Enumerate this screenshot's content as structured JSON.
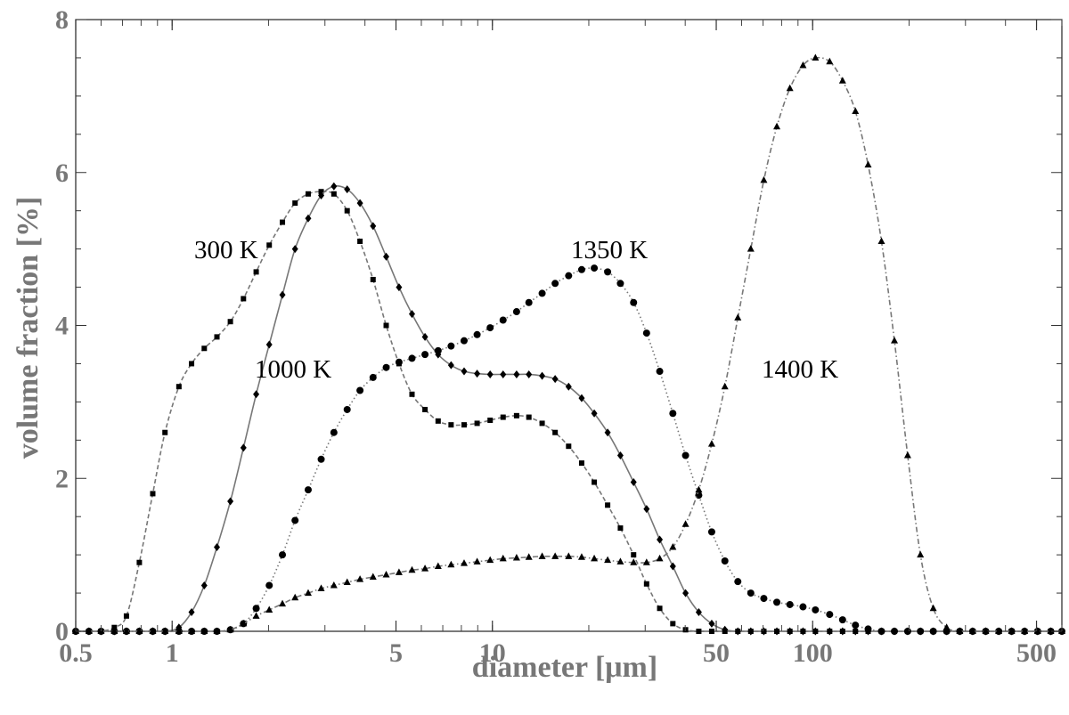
{
  "chart_data": {
    "type": "line",
    "xlabel": "diameter [μm]",
    "ylabel": "volume fraction [%]",
    "xscale": "log",
    "xlim": [
      0.5,
      600
    ],
    "ylim": [
      0,
      8
    ],
    "x_ticks": [
      {
        "value": 0.5,
        "label": "0.5"
      },
      {
        "value": 1,
        "label": "1"
      },
      {
        "value": 5,
        "label": "5"
      },
      {
        "value": 10,
        "label": "10"
      },
      {
        "value": 50,
        "label": "50"
      },
      {
        "value": 100,
        "label": "100"
      },
      {
        "value": 500,
        "label": "500"
      }
    ],
    "y_ticks": [
      {
        "value": 0,
        "label": "0"
      },
      {
        "value": 2,
        "label": "2"
      },
      {
        "value": 4,
        "label": "4"
      },
      {
        "value": 6,
        "label": "6"
      },
      {
        "value": 8,
        "label": "8"
      }
    ],
    "grid": false,
    "series": [
      {
        "name": "300 K",
        "marker": "square",
        "line": "dashed",
        "color": "#777777",
        "x": [
          0.5,
          0.55,
          0.6,
          0.66,
          0.72,
          0.79,
          0.87,
          0.95,
          1.05,
          1.15,
          1.26,
          1.38,
          1.52,
          1.67,
          1.83,
          2.01,
          2.21,
          2.42,
          2.66,
          2.92,
          3.2,
          3.52,
          3.86,
          4.24,
          4.66,
          5.11,
          5.61,
          6.16,
          6.77,
          7.43,
          8.16,
          8.96,
          9.84,
          10.8,
          11.9,
          13.0,
          14.3,
          15.7,
          17.3,
          19.0,
          20.8,
          22.9,
          25.1,
          27.6,
          30.3,
          33.3,
          36.6,
          40.1,
          44.1,
          48.4,
          53.2,
          58.4,
          64.1,
          70.4,
          77.3,
          84.9,
          93.3,
          102,
          113,
          124,
          136,
          149,
          164,
          180,
          198,
          217,
          238,
          262,
          288,
          316,
          347,
          381,
          418,
          459,
          504,
          554,
          600
        ],
        "y": [
          0,
          0,
          0,
          0.05,
          0.2,
          0.9,
          1.8,
          2.6,
          3.2,
          3.5,
          3.7,
          3.85,
          4.05,
          4.35,
          4.7,
          5.05,
          5.35,
          5.6,
          5.72,
          5.75,
          5.72,
          5.5,
          5.1,
          4.6,
          4.0,
          3.5,
          3.1,
          2.9,
          2.75,
          2.7,
          2.7,
          2.72,
          2.76,
          2.8,
          2.82,
          2.8,
          2.72,
          2.6,
          2.42,
          2.2,
          1.95,
          1.65,
          1.35,
          1.0,
          0.62,
          0.3,
          0.1,
          0.02,
          0,
          0,
          0,
          0,
          0,
          0,
          0,
          0,
          0,
          0,
          0,
          0,
          0,
          0,
          0,
          0,
          0,
          0,
          0,
          0,
          0,
          0,
          0,
          0,
          0,
          0,
          0,
          0,
          0
        ]
      },
      {
        "name": "1000 K",
        "marker": "diamond",
        "line": "solid",
        "color": "#777777",
        "x": [
          0.5,
          0.55,
          0.6,
          0.66,
          0.72,
          0.79,
          0.87,
          0.95,
          1.05,
          1.15,
          1.26,
          1.38,
          1.52,
          1.67,
          1.83,
          2.01,
          2.21,
          2.42,
          2.66,
          2.92,
          3.2,
          3.52,
          3.86,
          4.24,
          4.66,
          5.11,
          5.61,
          6.16,
          6.77,
          7.43,
          8.16,
          8.96,
          9.84,
          10.8,
          11.9,
          13.0,
          14.3,
          15.7,
          17.3,
          19.0,
          20.8,
          22.9,
          25.1,
          27.6,
          30.3,
          33.3,
          36.6,
          40.1,
          44.1,
          48.4,
          53.2,
          58.4,
          64.1,
          70.4,
          77.3,
          84.9,
          93.3,
          102,
          113,
          124,
          136,
          149,
          164,
          180,
          198,
          217,
          238,
          262,
          288,
          316,
          347,
          381,
          418,
          459,
          504,
          554,
          600
        ],
        "y": [
          0,
          0,
          0,
          0,
          0,
          0,
          0,
          0,
          0.05,
          0.25,
          0.6,
          1.1,
          1.7,
          2.4,
          3.1,
          3.75,
          4.4,
          5.0,
          5.4,
          5.7,
          5.82,
          5.78,
          5.6,
          5.3,
          4.9,
          4.5,
          4.15,
          3.85,
          3.62,
          3.48,
          3.4,
          3.37,
          3.36,
          3.36,
          3.36,
          3.36,
          3.34,
          3.3,
          3.2,
          3.05,
          2.85,
          2.6,
          2.3,
          1.95,
          1.6,
          1.2,
          0.85,
          0.5,
          0.25,
          0.1,
          0.02,
          0,
          0,
          0,
          0,
          0,
          0,
          0,
          0,
          0,
          0,
          0,
          0,
          0,
          0,
          0,
          0,
          0,
          0,
          0,
          0,
          0,
          0,
          0,
          0,
          0,
          0
        ]
      },
      {
        "name": "1350 K",
        "marker": "circle",
        "line": "dotted",
        "color": "#777777",
        "x": [
          0.5,
          0.55,
          0.6,
          0.66,
          0.72,
          0.79,
          0.87,
          0.95,
          1.05,
          1.15,
          1.26,
          1.38,
          1.52,
          1.67,
          1.83,
          2.01,
          2.21,
          2.42,
          2.66,
          2.92,
          3.2,
          3.52,
          3.86,
          4.24,
          4.66,
          5.11,
          5.61,
          6.16,
          6.77,
          7.43,
          8.16,
          8.96,
          9.84,
          10.8,
          11.9,
          13.0,
          14.3,
          15.7,
          17.3,
          19.0,
          20.8,
          22.9,
          25.1,
          27.6,
          30.3,
          33.3,
          36.6,
          40.1,
          44.1,
          48.4,
          53.2,
          58.4,
          64.1,
          70.4,
          77.3,
          84.9,
          93.3,
          102,
          113,
          124,
          136,
          149,
          164,
          180,
          198,
          217,
          238,
          262,
          288,
          316,
          347,
          381,
          418,
          459,
          504,
          554,
          600
        ],
        "y": [
          0,
          0,
          0,
          0,
          0,
          0,
          0,
          0,
          0,
          0,
          0,
          0,
          0.02,
          0.1,
          0.3,
          0.6,
          1.0,
          1.45,
          1.85,
          2.25,
          2.6,
          2.9,
          3.15,
          3.32,
          3.45,
          3.52,
          3.57,
          3.62,
          3.67,
          3.73,
          3.8,
          3.88,
          3.97,
          4.07,
          4.18,
          4.3,
          4.42,
          4.55,
          4.65,
          4.73,
          4.75,
          4.7,
          4.55,
          4.3,
          3.9,
          3.4,
          2.85,
          2.3,
          1.78,
          1.3,
          0.92,
          0.65,
          0.5,
          0.43,
          0.38,
          0.35,
          0.32,
          0.28,
          0.22,
          0.15,
          0.08,
          0.03,
          0,
          0,
          0,
          0,
          0,
          0,
          0,
          0,
          0,
          0,
          0,
          0,
          0,
          0,
          0
        ]
      },
      {
        "name": "1400 K",
        "marker": "triangle",
        "line": "dash-dot",
        "color": "#777777",
        "x": [
          0.5,
          0.55,
          0.6,
          0.66,
          0.72,
          0.79,
          0.87,
          0.95,
          1.05,
          1.15,
          1.26,
          1.38,
          1.52,
          1.67,
          1.83,
          2.01,
          2.21,
          2.42,
          2.66,
          2.92,
          3.2,
          3.52,
          3.86,
          4.24,
          4.66,
          5.11,
          5.61,
          6.16,
          6.77,
          7.43,
          8.16,
          8.96,
          9.84,
          10.8,
          11.9,
          13.0,
          14.3,
          15.7,
          17.3,
          19.0,
          20.8,
          22.9,
          25.1,
          27.6,
          30.3,
          33.3,
          36.6,
          40.1,
          44.1,
          48.4,
          53.2,
          58.4,
          64.1,
          70.4,
          77.3,
          84.9,
          93.3,
          102,
          113,
          124,
          136,
          149,
          164,
          180,
          198,
          217,
          238,
          262,
          288,
          316,
          347,
          381,
          418,
          459,
          504,
          554,
          600
        ],
        "y": [
          0,
          0,
          0,
          0,
          0,
          0,
          0,
          0,
          0,
          0,
          0,
          0,
          0.02,
          0.1,
          0.2,
          0.28,
          0.36,
          0.44,
          0.5,
          0.56,
          0.6,
          0.64,
          0.68,
          0.71,
          0.74,
          0.77,
          0.8,
          0.82,
          0.85,
          0.87,
          0.89,
          0.91,
          0.93,
          0.95,
          0.96,
          0.97,
          0.98,
          0.98,
          0.98,
          0.97,
          0.95,
          0.93,
          0.91,
          0.9,
          0.9,
          0.95,
          1.1,
          1.4,
          1.85,
          2.45,
          3.2,
          4.1,
          5.0,
          5.9,
          6.6,
          7.1,
          7.4,
          7.5,
          7.45,
          7.2,
          6.8,
          6.1,
          5.1,
          3.8,
          2.3,
          1.0,
          0.3,
          0.05,
          0,
          0,
          0,
          0,
          0,
          0,
          0,
          0,
          0
        ]
      }
    ],
    "annotations": [
      "300 K",
      "1000 K",
      "1350 K",
      "1400 K"
    ]
  }
}
